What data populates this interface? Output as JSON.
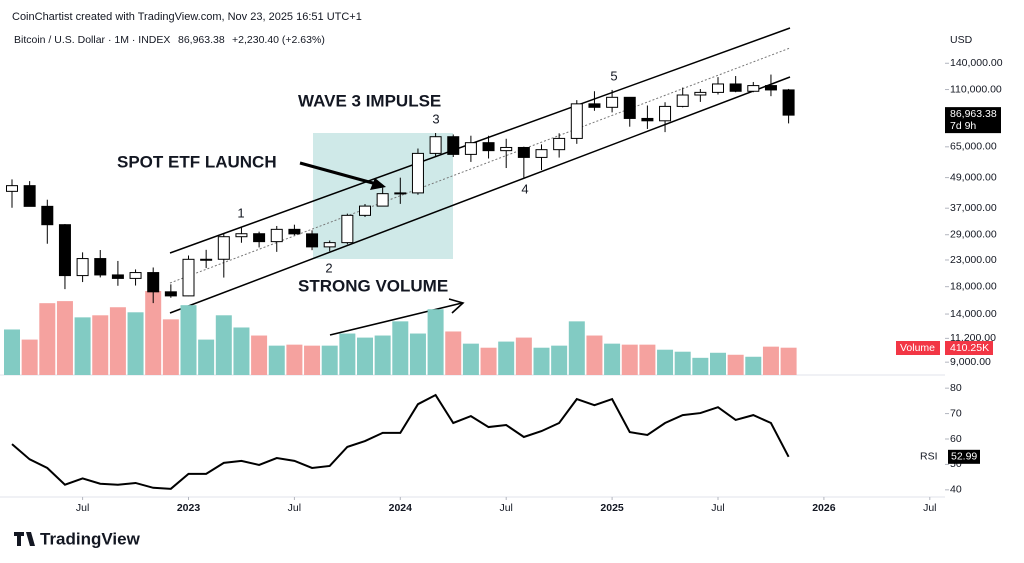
{
  "header": {
    "credit": "CoinChartist created with TradingView.com, Nov 23, 2025 16:51 UTC+1",
    "logo": "TradingView"
  },
  "chart_data": [
    {
      "type": "candlestick",
      "title": "Bitcoin / U.S. Dollar · 1M · INDEX",
      "last_quote": "86,963.38",
      "change": "+2,230.40 (+2.63%)",
      "currency": "USD",
      "x": [
        "2022-03",
        "2022-04",
        "2022-05",
        "2022-06",
        "2022-07",
        "2022-08",
        "2022-09",
        "2022-10",
        "2022-11",
        "2022-12",
        "2023-01",
        "2023-02",
        "2023-03",
        "2023-04",
        "2023-05",
        "2023-06",
        "2023-07",
        "2023-08",
        "2023-09",
        "2023-10",
        "2023-11",
        "2023-12",
        "2024-01",
        "2024-02",
        "2024-03",
        "2024-04",
        "2024-05",
        "2024-06",
        "2024-07",
        "2024-08",
        "2024-09",
        "2024-10",
        "2024-11",
        "2024-12",
        "2025-01",
        "2025-02",
        "2025-03",
        "2025-04",
        "2025-05",
        "2025-06",
        "2025-07",
        "2025-08",
        "2025-09",
        "2025-10",
        "2025-11"
      ],
      "open": [
        43190,
        45510,
        37630,
        31800,
        19930,
        23300,
        20050,
        19420,
        20490,
        17170,
        16540,
        23140,
        23150,
        28480,
        29270,
        27220,
        30470,
        29230,
        25940,
        26970,
        34650,
        37720,
        42280,
        42580,
        61200,
        71330,
        60640,
        67530,
        62760,
        64620,
        58980,
        63330,
        70220,
        96450,
        93430,
        102400,
        84350,
        82550,
        94210,
        104600,
        107150,
        115760,
        108250,
        114050,
        109600
      ],
      "high": [
        48190,
        47450,
        40000,
        31990,
        24670,
        25200,
        22800,
        21090,
        21470,
        18390,
        23960,
        25250,
        29190,
        31000,
        29830,
        31430,
        31800,
        30200,
        27500,
        35200,
        38450,
        44700,
        48970,
        64000,
        73800,
        72800,
        71980,
        71950,
        70000,
        65100,
        66500,
        73600,
        99800,
        108300,
        109600,
        102500,
        95000,
        97900,
        112000,
        110500,
        123200,
        124500,
        117900,
        126200,
        110600
      ],
      "low": [
        37160,
        37700,
        26700,
        17600,
        18780,
        19600,
        18150,
        18190,
        15480,
        16260,
        16500,
        21350,
        19570,
        26940,
        25810,
        24780,
        28860,
        25170,
        24900,
        26560,
        34120,
        37630,
        38500,
        41850,
        59300,
        59200,
        56600,
        58400,
        53500,
        49000,
        52550,
        58900,
        66800,
        90500,
        89200,
        78200,
        76600,
        74400,
        93400,
        98200,
        105100,
        107300,
        107300,
        103500,
        80600
      ],
      "close": [
        45510,
        37630,
        31800,
        19930,
        23300,
        20050,
        19420,
        20490,
        17170,
        16540,
        23140,
        23150,
        28480,
        29270,
        27220,
        30470,
        29230,
        25940,
        26970,
        34650,
        37720,
        42280,
        42580,
        61200,
        71330,
        60640,
        67530,
        62760,
        64620,
        58980,
        63330,
        70220,
        96450,
        93430,
        102400,
        84350,
        82550,
        94210,
        104600,
        107150,
        115760,
        108250,
        114050,
        109600,
        86963.38
      ],
      "log_scale": true,
      "ylim": [
        8000,
        190000
      ],
      "yticks": [
        {
          "value": 9000,
          "label": "9,000.00"
        },
        {
          "value": 11200,
          "label": "11,200.00"
        },
        {
          "value": 14000,
          "label": "14,000.00"
        },
        {
          "value": 18000,
          "label": "18,000.00"
        },
        {
          "value": 23000,
          "label": "23,000.00"
        },
        {
          "value": 29000,
          "label": "29,000.00"
        },
        {
          "value": 37000,
          "label": "37,000.00"
        },
        {
          "value": 49000,
          "label": "49,000.00"
        },
        {
          "value": 65000,
          "label": "65,000.00"
        },
        {
          "value": 110000,
          "label": "110,000.00"
        },
        {
          "value": 140000,
          "label": "140,000.00"
        }
      ],
      "last_price": {
        "value": 86963.38,
        "label": "86,963.38"
      },
      "countdown": "7d 9h",
      "up_color": "#ffffff",
      "down_color": "#000000",
      "xticks": [
        {
          "value": "2022-07",
          "label": "Jul"
        },
        {
          "value": "2023-01",
          "label": "2023"
        },
        {
          "value": "2023-07",
          "label": "Jul"
        },
        {
          "value": "2024-01",
          "label": "2024"
        },
        {
          "value": "2024-07",
          "label": "Jul"
        },
        {
          "value": "2025-01",
          "label": "2025"
        },
        {
          "value": "2025-07",
          "label": "Jul"
        },
        {
          "value": "2026-01",
          "label": "2026"
        },
        {
          "value": "2026-07",
          "label": "Jul"
        }
      ],
      "annotations": [
        "WAVE 3 IMPULSE",
        "SPOT ETF LAUNCH",
        "STRONG VOLUME",
        "1",
        "2",
        "3",
        "4",
        "5"
      ]
    },
    {
      "type": "bar",
      "name": "Volume",
      "values": [
        684,
        532,
        1079,
        1110,
        866,
        897,
        1018,
        942,
        1262,
        836,
        1049,
        532,
        897,
        714,
        593,
        441,
        456,
        441,
        441,
        623,
        562,
        593,
        806,
        623,
        988,
        654,
        471,
        410,
        502,
        562,
        410,
        441,
        806,
        593,
        471,
        456,
        456,
        380,
        350,
        258,
        334,
        304,
        274,
        426,
        410.25
      ],
      "last_label": "410.25K",
      "up_color": "#82cbc3",
      "down_color": "#f5a29f"
    },
    {
      "type": "line",
      "name": "RSI",
      "values": [
        58,
        52,
        48.6,
        42,
        44.5,
        42.4,
        42,
        42.7,
        40.8,
        40.4,
        46.3,
        46.3,
        50.6,
        51.4,
        49.8,
        52.5,
        51.4,
        48.6,
        49.4,
        56.9,
        59.2,
        62.4,
        62.4,
        73.7,
        77.3,
        66.3,
        69,
        64.7,
        65.5,
        60.8,
        63.1,
        66.3,
        75.7,
        73.3,
        75.7,
        62.7,
        61.6,
        66.3,
        69.4,
        70.2,
        72.5,
        67.5,
        69.4,
        66.3,
        52.99
      ],
      "ylim": [
        36,
        84
      ],
      "yticks": [
        40,
        50,
        60,
        70,
        80
      ],
      "color": "#000000"
    }
  ]
}
